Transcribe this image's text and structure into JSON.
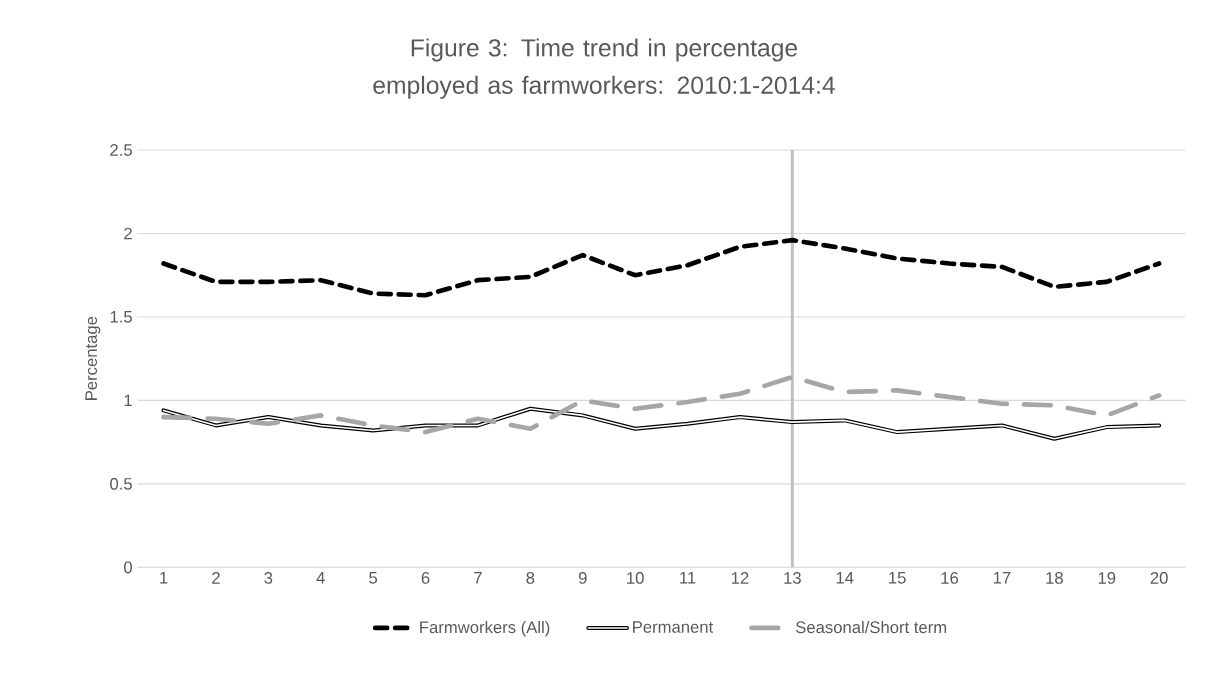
{
  "chart_data": {
    "type": "line",
    "title": "Figure 3: Time trend in percentage employed as farmworkers: 2010:1-2014:4",
    "ylabel": "Percentage",
    "categories": [
      "1",
      "2",
      "3",
      "4",
      "5",
      "6",
      "7",
      "8",
      "9",
      "10",
      "11",
      "12",
      "13",
      "14",
      "15",
      "16",
      "17",
      "18",
      "19",
      "20"
    ],
    "series": [
      {
        "name": "Farmworkers (All)",
        "color": "#000000",
        "line_style": "dashed",
        "values": [
          1.82,
          1.71,
          1.71,
          1.72,
          1.64,
          1.63,
          1.72,
          1.74,
          1.87,
          1.75,
          1.81,
          1.92,
          1.96,
          1.91,
          1.85,
          1.82,
          1.8,
          1.68,
          1.71,
          1.82
        ]
      },
      {
        "name": "Permanent",
        "color": "#000000",
        "line_style": "solid",
        "values": [
          0.94,
          0.85,
          0.9,
          0.85,
          0.82,
          0.85,
          0.85,
          0.95,
          0.91,
          0.83,
          0.86,
          0.9,
          0.87,
          0.88,
          0.81,
          0.83,
          0.85,
          0.77,
          0.84,
          0.85
        ]
      },
      {
        "name": "Seasonal/Short term",
        "color": "#a6a6a6",
        "line_style": "dashed",
        "values": [
          0.9,
          0.89,
          0.86,
          0.91,
          0.85,
          0.81,
          0.89,
          0.83,
          1.0,
          0.95,
          0.99,
          1.04,
          1.14,
          1.05,
          1.06,
          1.02,
          0.98,
          0.97,
          0.91,
          1.03
        ]
      }
    ],
    "ylim": [
      0,
      2.5
    ],
    "yticks": [
      0,
      0.5,
      1,
      1.5,
      2,
      2.5
    ],
    "grid": "y",
    "legend": "bottom",
    "marker": "none",
    "ref_lines": [
      {
        "axis": "x",
        "value": "13",
        "color": "#bfbfbf"
      }
    ]
  }
}
